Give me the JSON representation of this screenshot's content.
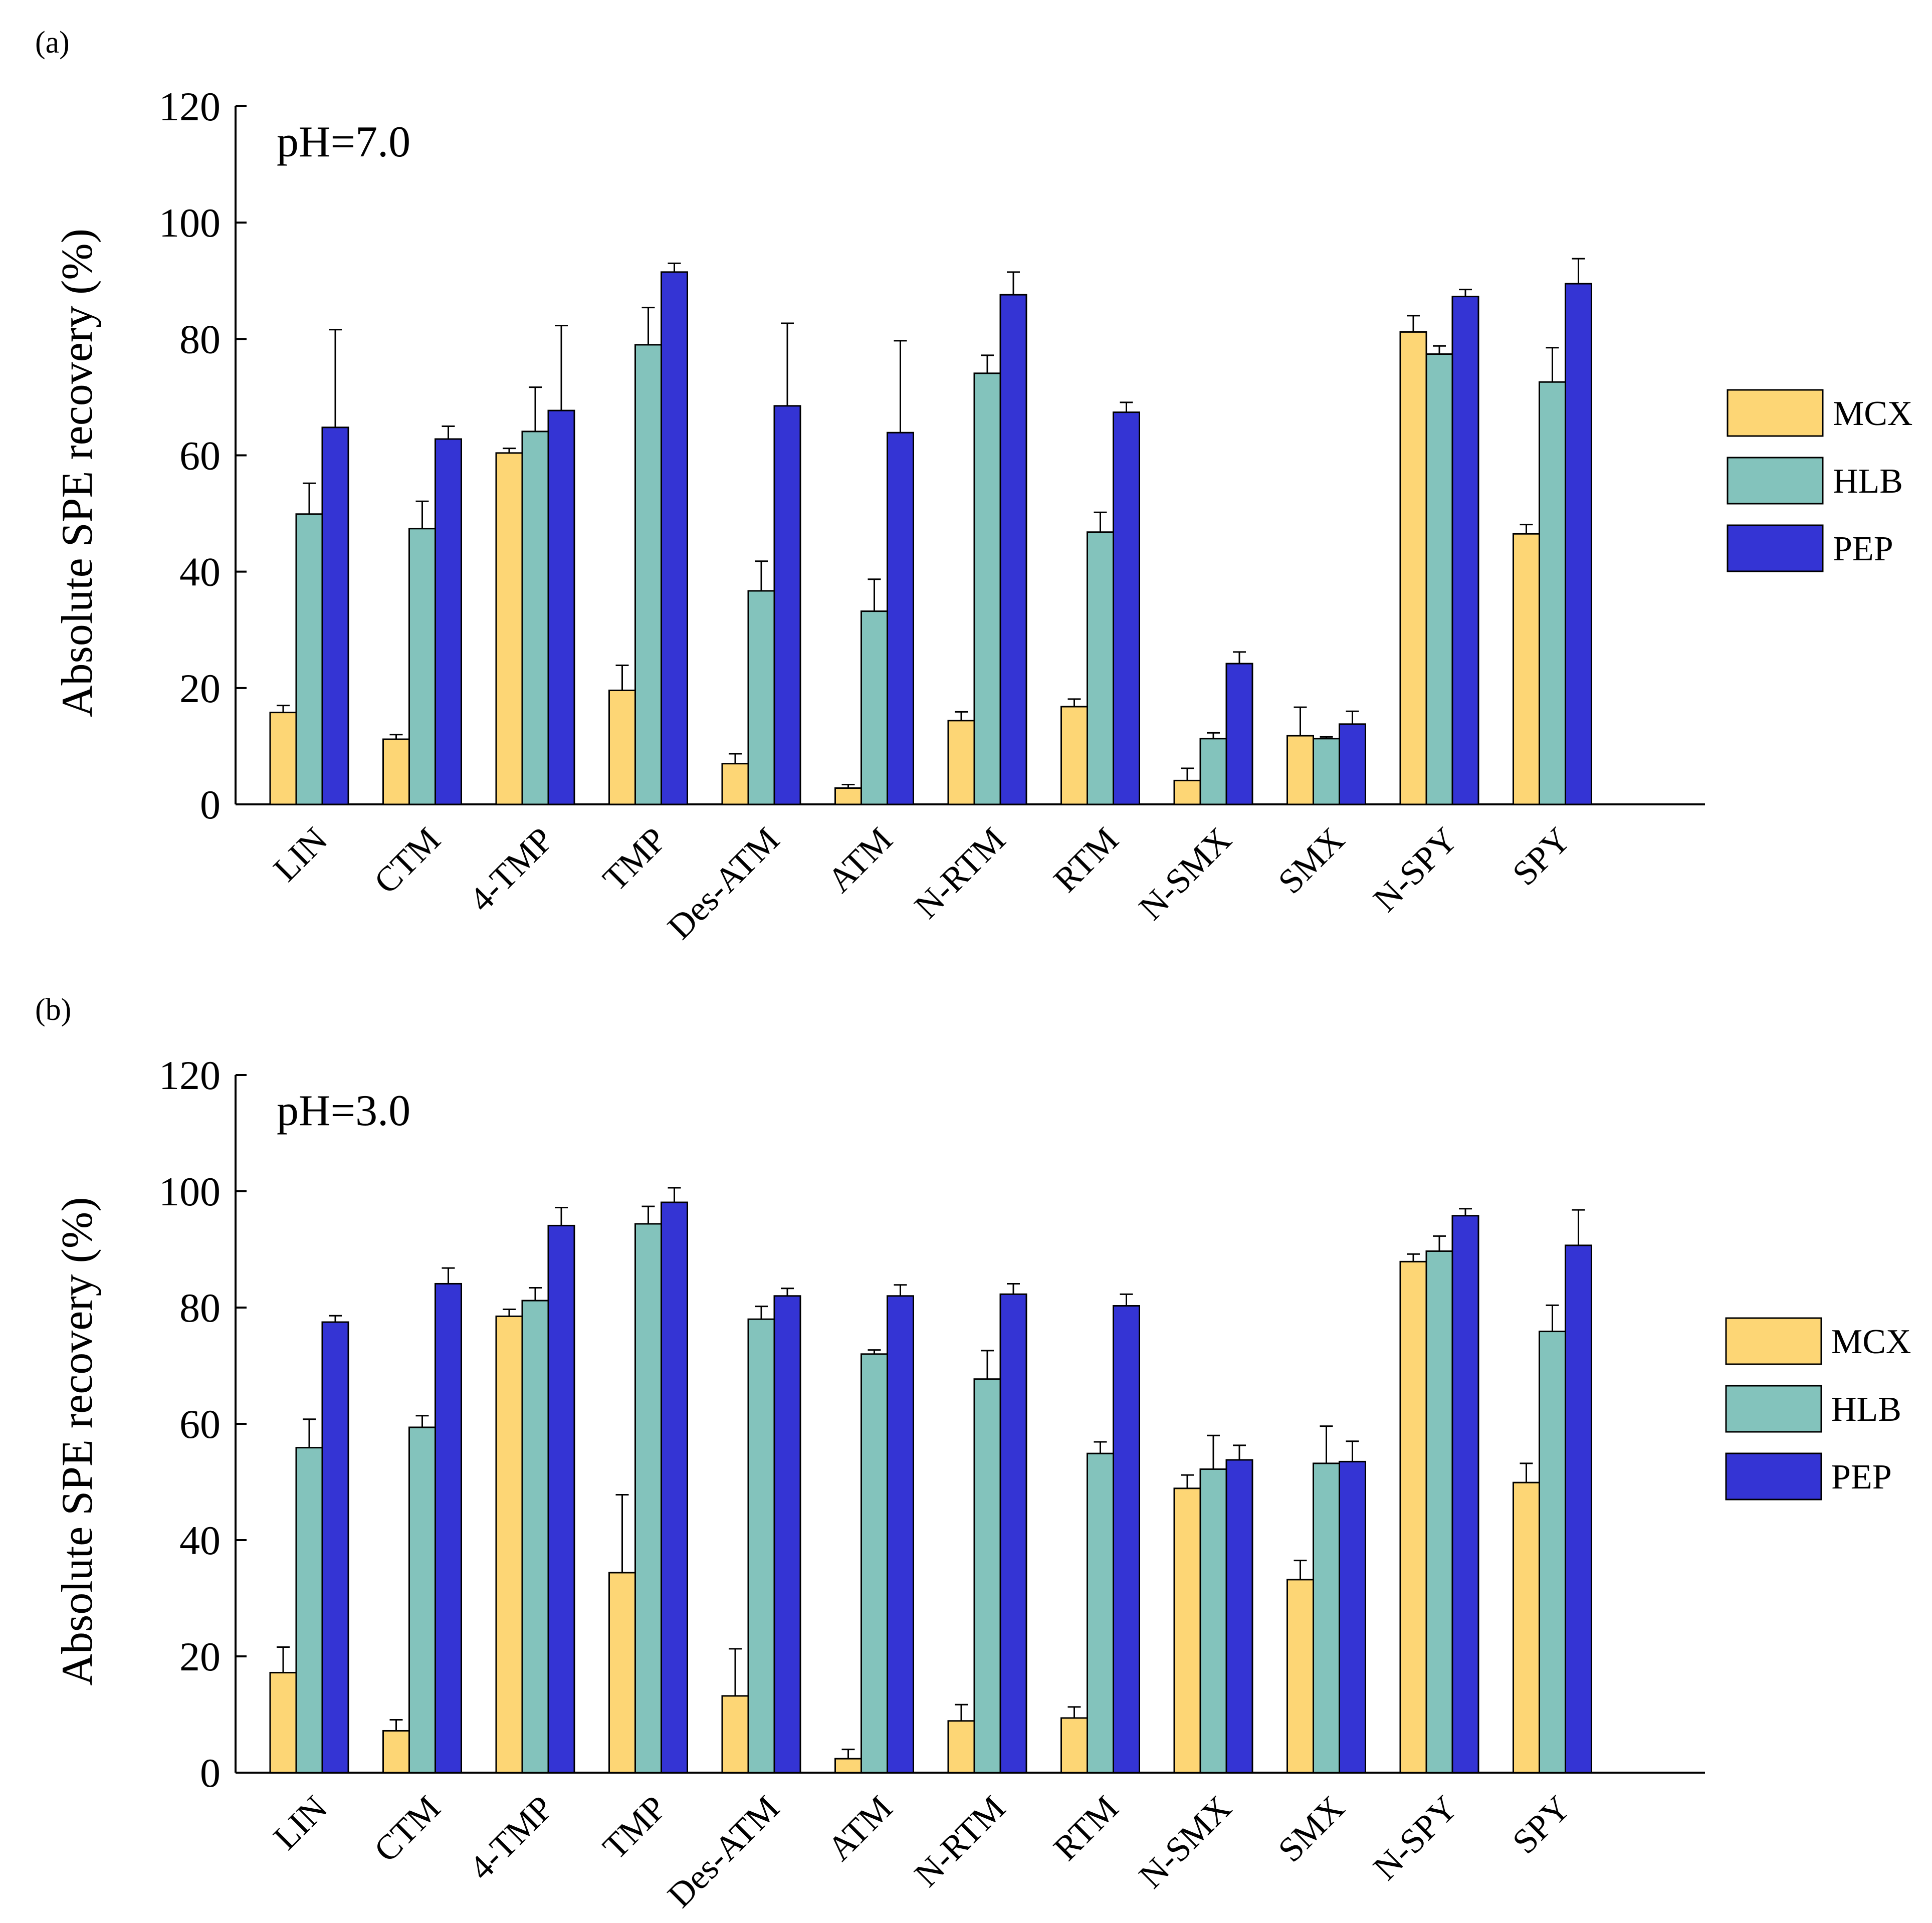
{
  "chart_data": [
    {
      "type": "bar",
      "panel": "(a)",
      "annotation": "pH=7.0",
      "ylabel": "Absolute SPE recovery (%)",
      "xlabel": "",
      "ylim": [
        0,
        120
      ],
      "yticks": [
        0,
        20,
        40,
        60,
        80,
        100,
        120
      ],
      "categories": [
        "LIN",
        "CTM",
        "4-TMP",
        "TMP",
        "Des-ATM",
        "ATM",
        "N-RTM",
        "RTM",
        "N-SMX",
        "SMX",
        "N-SPY",
        "SPY"
      ],
      "series": [
        {
          "name": "MCX",
          "color": "#FDD675",
          "values": [
            15.8,
            11.2,
            60.4,
            19.6,
            7.0,
            2.8,
            14.4,
            16.8,
            4.1,
            11.8,
            81.2,
            46.5
          ],
          "errors": [
            1.2,
            0.8,
            0.8,
            4.3,
            1.7,
            0.6,
            1.5,
            1.3,
            2.1,
            4.9,
            2.8,
            1.6
          ]
        },
        {
          "name": "HLB",
          "color": "#83C3BC",
          "values": [
            49.9,
            47.4,
            64.1,
            79.0,
            36.7,
            33.2,
            74.1,
            46.8,
            11.3,
            11.3,
            77.4,
            72.6
          ],
          "errors": [
            5.3,
            4.7,
            7.6,
            6.4,
            5.1,
            5.5,
            3.1,
            3.4,
            1.0,
            0.3,
            1.4,
            5.9
          ]
        },
        {
          "name": "PEP",
          "color": "#3434D4",
          "values": [
            64.8,
            62.8,
            67.7,
            91.5,
            68.5,
            63.9,
            87.6,
            67.4,
            24.2,
            13.8,
            87.3,
            89.5
          ],
          "errors": [
            16.8,
            2.2,
            14.6,
            1.5,
            14.2,
            15.8,
            3.9,
            1.7,
            2.0,
            2.2,
            1.2,
            4.3
          ]
        }
      ]
    },
    {
      "type": "bar",
      "panel": "(b)",
      "annotation": "pH=3.0",
      "ylabel": "Absolute SPE recovery (%)",
      "xlabel": "",
      "ylim": [
        0,
        120
      ],
      "yticks": [
        0,
        20,
        40,
        60,
        80,
        100,
        120
      ],
      "categories": [
        "LIN",
        "CTM",
        "4-TMP",
        "TMP",
        "Des-ATM",
        "ATM",
        "N-RTM",
        "RTM",
        "N-SMX",
        "SMX",
        "N-SPY",
        "SPY"
      ],
      "series": [
        {
          "name": "MCX",
          "color": "#FDD675",
          "values": [
            17.2,
            7.2,
            78.5,
            34.4,
            13.2,
            2.4,
            8.9,
            9.4,
            48.9,
            33.2,
            87.9,
            49.9
          ],
          "errors": [
            4.4,
            1.9,
            1.2,
            13.4,
            8.1,
            1.6,
            2.8,
            1.9,
            2.3,
            3.3,
            1.3,
            3.3
          ]
        },
        {
          "name": "HLB",
          "color": "#83C3BC",
          "values": [
            55.9,
            59.4,
            81.2,
            94.4,
            78.0,
            72.0,
            67.7,
            54.9,
            52.2,
            53.2,
            89.7,
            75.9
          ],
          "errors": [
            4.9,
            2.0,
            2.2,
            3.0,
            2.2,
            0.7,
            4.9,
            2.0,
            5.8,
            6.4,
            2.6,
            4.5
          ]
        },
        {
          "name": "PEP",
          "color": "#3434D4",
          "values": [
            77.5,
            84.1,
            94.1,
            98.1,
            82.0,
            82.0,
            82.3,
            80.3,
            53.8,
            53.5,
            95.8,
            90.7
          ],
          "errors": [
            1.1,
            2.7,
            3.1,
            2.5,
            1.3,
            1.9,
            1.8,
            2.0,
            2.5,
            3.5,
            1.2,
            6.1
          ]
        }
      ]
    }
  ]
}
